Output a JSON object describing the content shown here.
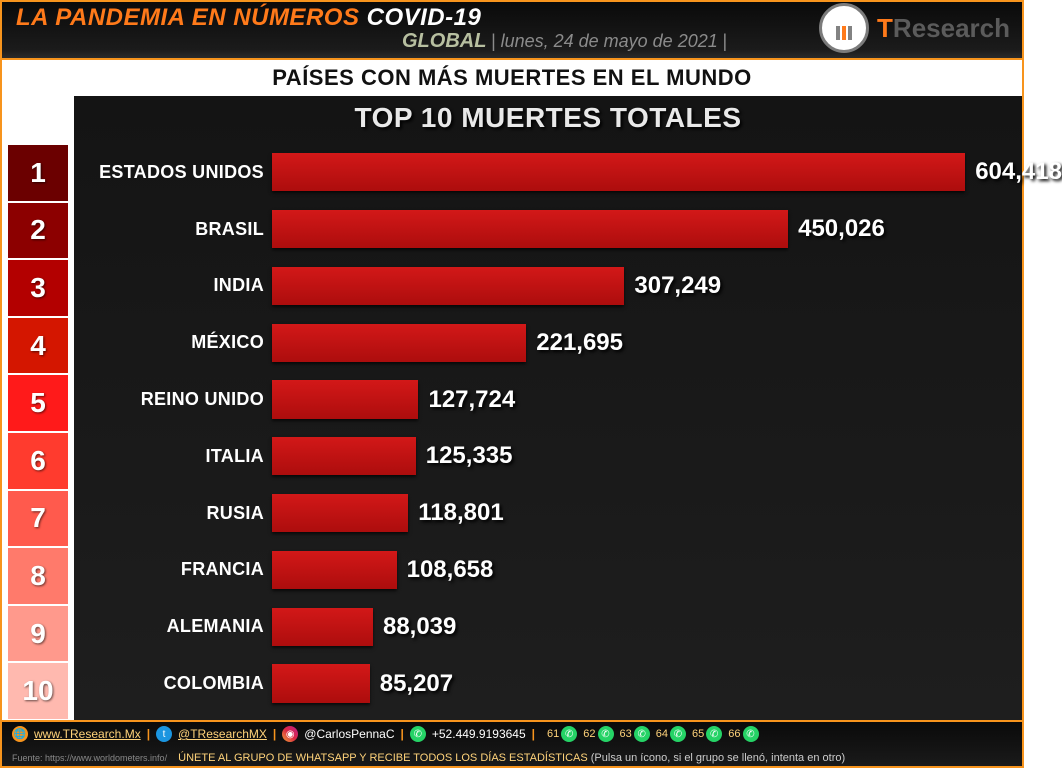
{
  "header": {
    "title_pre": "LA PANDEMIA EN NÚMEROS ",
    "title_post": "COVID-19",
    "scope": "GLOBAL",
    "date_sep": " | ",
    "date": "lunes, 24 de mayo de 2021",
    "date_sep2": " |",
    "brand_pre": "T",
    "brand_post": "Research"
  },
  "subheader": "PAÍSES CON MÁS MUERTES EN EL MUNDO",
  "chart": {
    "type": "bar-horizontal",
    "title": "TOP 10 MUERTES TOTALES",
    "background_color": "#1a1a1a",
    "bar_color_top": "#d31818",
    "bar_color_bottom": "#ad0d0d",
    "text_color": "#ffffff",
    "title_fontsize": 28,
    "label_fontsize": 18,
    "value_fontsize": 24,
    "x_max": 640000,
    "rank_colors": [
      "#6b0000",
      "#8c0000",
      "#b30000",
      "#d41600",
      "#ff1a1a",
      "#ff3b2e",
      "#ff5a4d",
      "#ff7a6b",
      "#ff998c",
      "#ffb9af"
    ],
    "rows": [
      {
        "rank": "1",
        "label": "ESTADOS UNIDOS",
        "value": 604418,
        "value_txt": "604,418"
      },
      {
        "rank": "2",
        "label": "BRASIL",
        "value": 450026,
        "value_txt": "450,026"
      },
      {
        "rank": "3",
        "label": "INDIA",
        "value": 307249,
        "value_txt": "307,249"
      },
      {
        "rank": "4",
        "label": "MÉXICO",
        "value": 221695,
        "value_txt": "221,695"
      },
      {
        "rank": "5",
        "label": "REINO UNIDO",
        "value": 127724,
        "value_txt": "127,724"
      },
      {
        "rank": "6",
        "label": "ITALIA",
        "value": 125335,
        "value_txt": "125,335"
      },
      {
        "rank": "7",
        "label": "RUSIA",
        "value": 118801,
        "value_txt": "118,801"
      },
      {
        "rank": "8",
        "label": "FRANCIA",
        "value": 108658,
        "value_txt": "108,658"
      },
      {
        "rank": "9",
        "label": "ALEMANIA",
        "value": 88039,
        "value_txt": "88,039"
      },
      {
        "rank": "10",
        "label": "COLOMBIA",
        "value": 85207,
        "value_txt": "85,207"
      }
    ]
  },
  "footer": {
    "site": "www.TResearch.Mx",
    "twitter": "@TResearchMX",
    "instagram": "@CarlosPennaC",
    "phone": "+52.449.9193645",
    "wa_groups": [
      "61",
      "62",
      "63",
      "64",
      "65",
      "66"
    ],
    "source": "Fuente: https://www.worldometers.info/",
    "cta": "ÚNETE AL GRUPO DE WHATSAPP Y RECIBE TODOS LOS DÍAS ESTADÍSTICAS",
    "cta_note": " (Pulsa un ícono, si el grupo se llenó, intenta en otro)"
  },
  "colors": {
    "accent_orange": "#f7941d",
    "header_bg": "#0a0a0a"
  }
}
